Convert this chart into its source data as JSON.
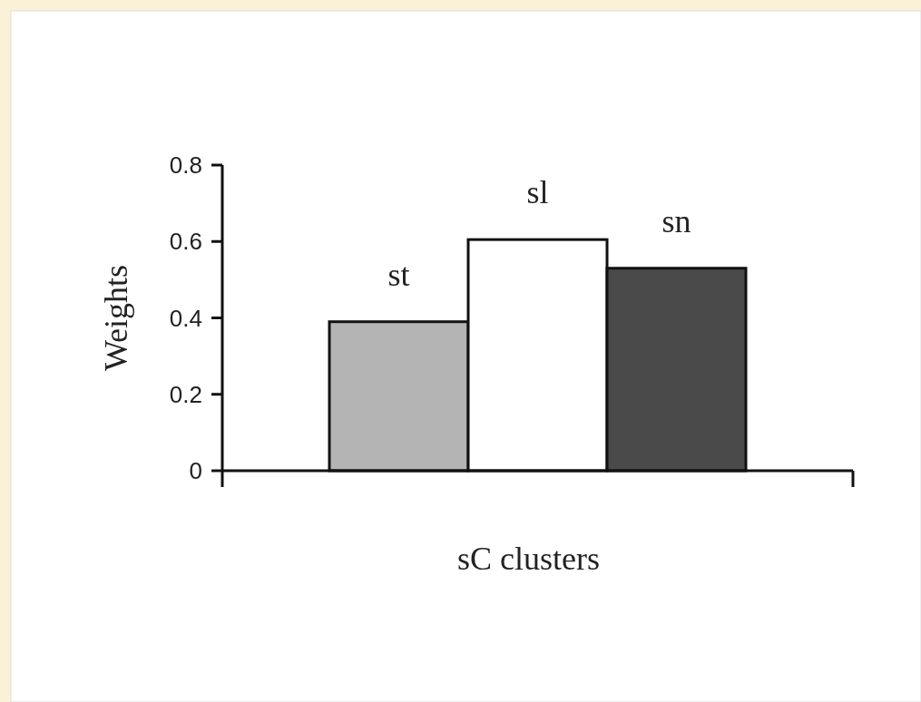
{
  "chart_data": {
    "type": "bar",
    "xlabel": "sC clusters",
    "ylabel": "Weights",
    "categories": [
      "st",
      "sl",
      "sn"
    ],
    "values": [
      0.39,
      0.605,
      0.53
    ],
    "colors": [
      "#b4b4b4",
      "#ffffff",
      "#4a4a4a"
    ],
    "ylim": [
      0,
      0.8
    ],
    "yticks": [
      0,
      0.2,
      0.4,
      0.6,
      0.8
    ]
  }
}
